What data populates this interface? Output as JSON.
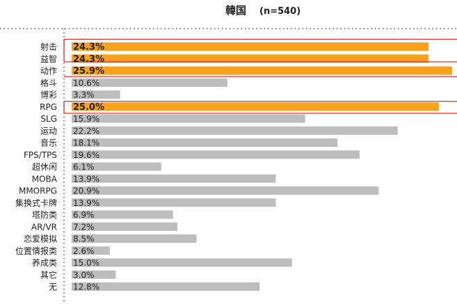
{
  "chart_data": {
    "type": "bar",
    "orientation": "horizontal",
    "title": "韓国",
    "subtitle": "(n=540)",
    "categories": [
      "射击",
      "益智",
      "动作",
      "格斗",
      "博彩",
      "RPG",
      "SLG",
      "运动",
      "音乐",
      "FPS/TPS",
      "超休闲",
      "MOBA",
      "MMORPG",
      "集换式卡牌",
      "塔防类",
      "AR/VR",
      "恋爱模拟",
      "位置情报类",
      "养成类",
      "其它",
      "无"
    ],
    "values": [
      24.3,
      24.3,
      25.9,
      10.6,
      3.3,
      25.0,
      15.9,
      22.2,
      18.1,
      19.6,
      6.1,
      13.9,
      20.9,
      13.9,
      6.9,
      7.2,
      8.5,
      2.6,
      15.0,
      3.0,
      12.8
    ],
    "value_labels": [
      "24.3%",
      "24.3%",
      "25.9%",
      "10.6%",
      "3.3%",
      "25.0%",
      "15.9%",
      "22.2%",
      "18.1%",
      "19.6%",
      "6.1%",
      "13.9%",
      "20.9%",
      "13.9%",
      "6.9%",
      "7.2%",
      "8.5%",
      "2.6%",
      "15.0%",
      "3.0%",
      "12.8%"
    ],
    "highlighted": [
      "射击",
      "益智",
      "动作",
      "RPG"
    ],
    "xlim": [
      0,
      26
    ],
    "grid": false,
    "colors": {
      "highlight": "#f7a11e",
      "normal": "#bdbdbd",
      "outline": "#e0322a",
      "frame": "#555555"
    }
  }
}
